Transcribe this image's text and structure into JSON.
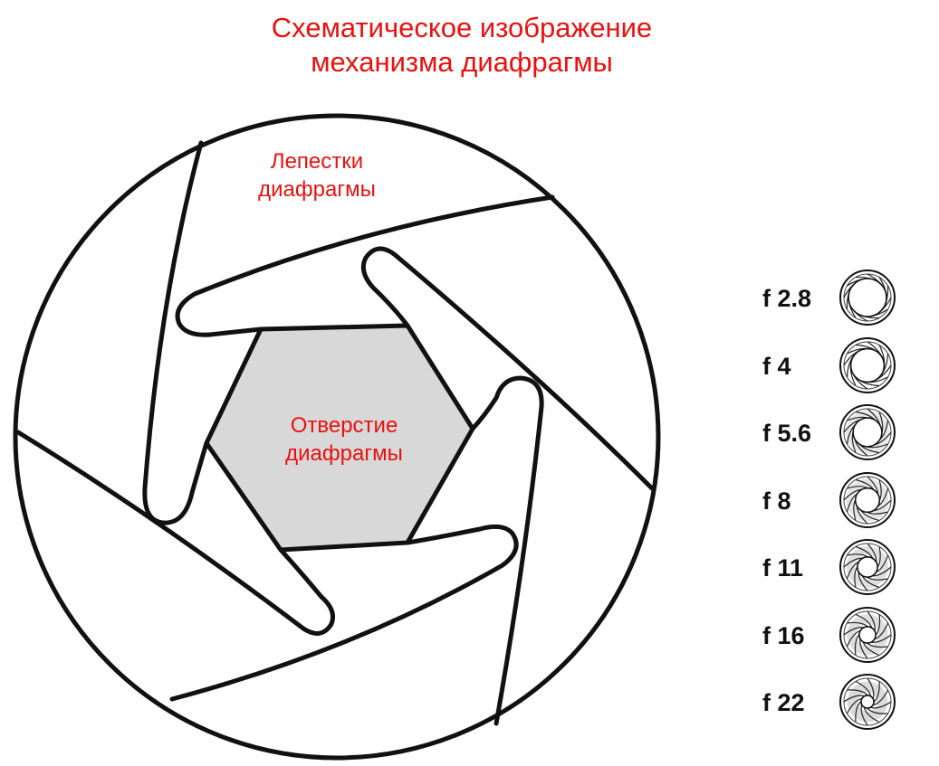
{
  "title": {
    "line1": "Схематическое изображение",
    "line2": "механизма диафрагмы"
  },
  "labels": {
    "petals": {
      "line1": "Лепестки",
      "line2": "диафрагмы"
    },
    "aperture": {
      "line1": "Отверстие",
      "line2": "диафрагмы"
    }
  },
  "fstops": [
    {
      "label": "f  2.8",
      "opening": 1.0
    },
    {
      "label": "f  4",
      "opening": 0.85
    },
    {
      "label": "f  5.6",
      "opening": 0.7
    },
    {
      "label": "f  8",
      "opening": 0.55
    },
    {
      "label": "f  11",
      "opening": 0.42
    },
    {
      "label": "f  16",
      "opening": 0.3
    },
    {
      "label": "f  22",
      "opening": 0.18
    }
  ],
  "colors": {
    "accent_text": "#e8110f",
    "aperture_fill": "#d8d8d8",
    "stroke": "#111111"
  }
}
